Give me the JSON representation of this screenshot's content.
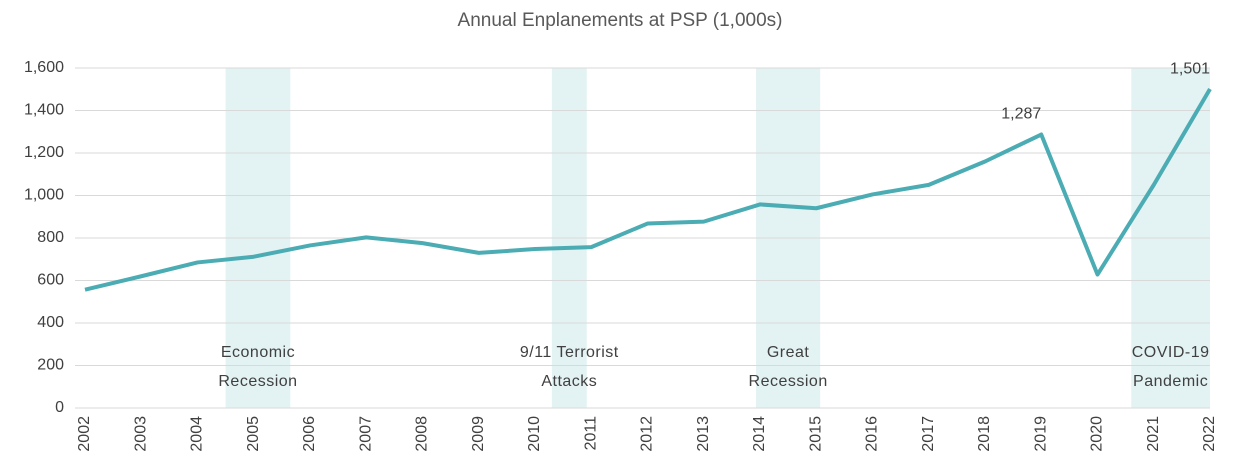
{
  "chart_data": {
    "type": "line",
    "title": "Annual Enplanements at PSP (1,000s)",
    "x": [
      2002,
      2003,
      2004,
      2005,
      2006,
      2007,
      2008,
      2009,
      2010,
      2011,
      2012,
      2013,
      2014,
      2015,
      2016,
      2017,
      2018,
      2019,
      2020,
      2021,
      2022
    ],
    "series": [
      {
        "color": "#4bacb4",
        "values": [
          557,
          620,
          685,
          712,
          765,
          803,
          776,
          730,
          748,
          757,
          868,
          877,
          958,
          940,
          1005,
          1050,
          1160,
          1287,
          628,
          1050,
          1501
        ],
        "value_labels": [
          null,
          null,
          null,
          null,
          null,
          null,
          null,
          null,
          null,
          null,
          null,
          null,
          null,
          null,
          null,
          null,
          null,
          "1,287",
          null,
          null,
          "1,501"
        ]
      }
    ],
    "xlim": [
      2002,
      2022
    ],
    "xticks": [
      2002,
      2003,
      2004,
      2005,
      2006,
      2007,
      2008,
      2009,
      2010,
      2011,
      2012,
      2013,
      2014,
      2015,
      2016,
      2017,
      2018,
      2019,
      2020,
      2021,
      2022
    ],
    "ylim": [
      0,
      1600
    ],
    "yticks": [
      0,
      200,
      400,
      600,
      800,
      {
        "value": 1000,
        "label": "1,000"
      },
      {
        "value": 1200,
        "label": "1,200"
      },
      {
        "value": 1400,
        "label": "1,400"
      },
      {
        "value": 1600,
        "label": "1,600"
      }
    ],
    "grid": true,
    "shaded_regions": [
      {
        "label": [
          "Economic",
          "Recession"
        ],
        "range": [
          2004.5,
          2005.65
        ]
      },
      {
        "label": [
          "9/11 Terrorist",
          "Attacks"
        ],
        "range": [
          2010.3,
          2010.92
        ]
      },
      {
        "label": [
          "Great",
          "Recession"
        ],
        "range": [
          2013.93,
          2015.07
        ]
      },
      {
        "label": [
          "COVID-19",
          "Pandemic"
        ],
        "range": [
          2020.6,
          2022
        ]
      }
    ],
    "shade_color": "#e3f2f3"
  }
}
